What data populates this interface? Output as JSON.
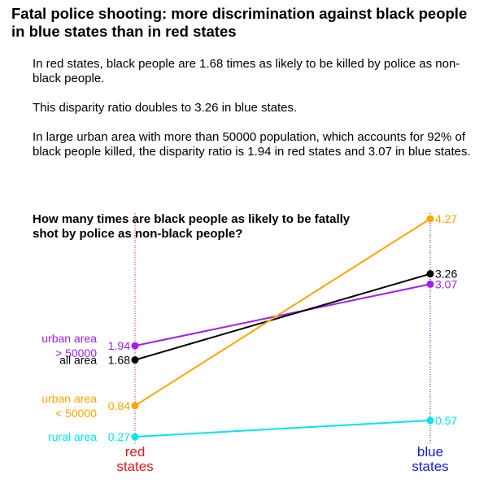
{
  "title": "Fatal police shooting: more discrimination against black people in blue states than in red states",
  "paragraphs": [
    "In red states, black people are 1.68 times as likely to be killed by police as non-black people.",
    "This disparity ratio doubles to 3.26 in blue states.",
    "In large urban area with more than 50000 population, which accounts for 92% of black people killed, the disparity ratio is 1.94 in red states and 3.07 in blue states."
  ],
  "chart_data": {
    "type": "line",
    "title": "How many times are black people as likely to be fatally shot by police as non-black people?",
    "categories": [
      {
        "lines": [
          "red",
          "states"
        ],
        "color": "#e0191c"
      },
      {
        "lines": [
          "blue",
          "states"
        ],
        "color": "#1a1ad6"
      }
    ],
    "ylim": [
      0,
      4.6
    ],
    "grid": false,
    "series": [
      {
        "key": "urban-large",
        "name_lines": [
          "urban area",
          "> 50000"
        ],
        "color": "#a020f0",
        "values": [
          1.94,
          3.07
        ],
        "labels": [
          "1.94",
          "3.07"
        ]
      },
      {
        "key": "all",
        "name_lines": [
          "all area"
        ],
        "color": "#000000",
        "values": [
          1.68,
          3.26
        ],
        "labels": [
          "1.68",
          "3.26"
        ]
      },
      {
        "key": "urban-small",
        "name_lines": [
          "urban area",
          "< 50000"
        ],
        "color": "#ffa500",
        "values": [
          0.84,
          4.27
        ],
        "labels": [
          "0.84",
          "4.27"
        ]
      },
      {
        "key": "rural",
        "name_lines": [
          "rural area"
        ],
        "color": "#00e5ee",
        "values": [
          0.27,
          0.57
        ],
        "labels": [
          "0.27",
          "0.57"
        ]
      }
    ]
  }
}
